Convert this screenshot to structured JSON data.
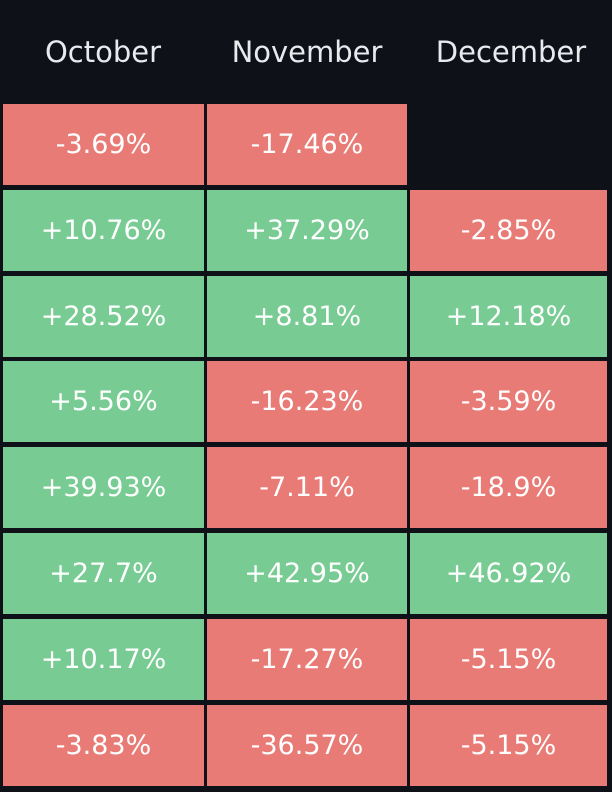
{
  "chart_data": {
    "type": "table",
    "columns": [
      "October",
      "November",
      "December"
    ],
    "rows": [
      [
        "-3.69%",
        "-17.46%",
        ""
      ],
      [
        "+10.76%",
        "+37.29%",
        "-2.85%"
      ],
      [
        "+28.52%",
        "+8.81%",
        "+12.18%"
      ],
      [
        "+5.56%",
        "-16.23%",
        "-3.59%"
      ],
      [
        "+39.93%",
        "-7.11%",
        "-18.9%"
      ],
      [
        "+27.7%",
        "+42.95%",
        "+46.92%"
      ],
      [
        "+10.17%",
        "-17.27%",
        "-5.15%"
      ],
      [
        "-3.83%",
        "-36.57%",
        "-5.15%"
      ]
    ]
  },
  "colors": {
    "background": "#0e1117",
    "positive": "#78cc93",
    "negative": "#e97b76",
    "header_text": "#e8eaee",
    "cell_text": "#ffffff"
  }
}
